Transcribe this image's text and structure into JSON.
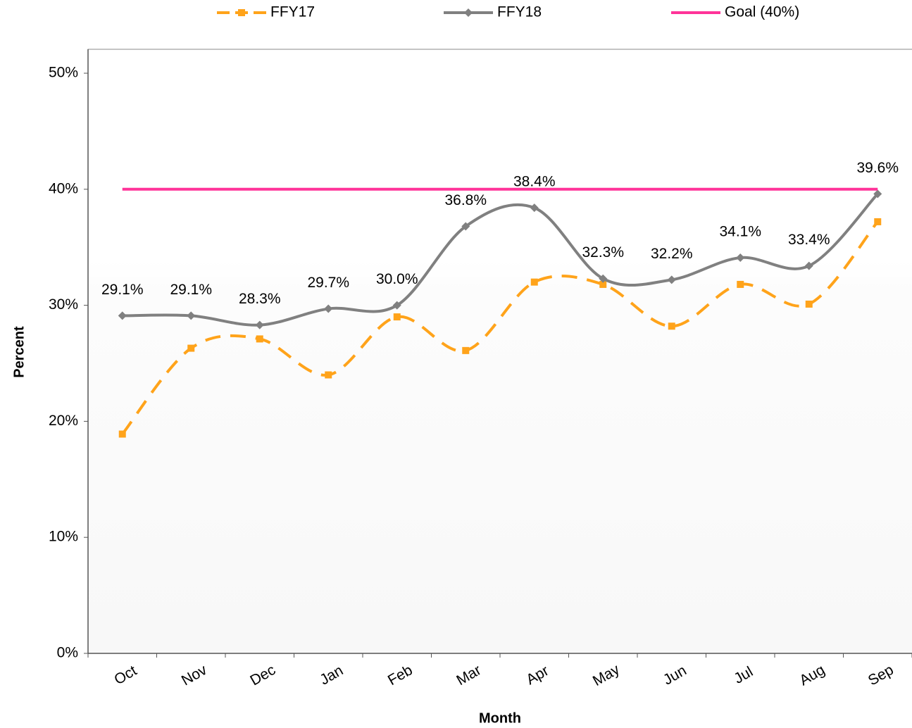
{
  "chart_data": {
    "type": "line",
    "xlabel": "Month",
    "ylabel": "Percent",
    "categories": [
      "Oct",
      "Nov",
      "Dec",
      "Jan",
      "Feb",
      "Mar",
      "Apr",
      "May",
      "Jun",
      "Jul",
      "Aug",
      "Sep"
    ],
    "series": [
      {
        "name": "FFY17",
        "color": "#ffa31a",
        "dashed": true,
        "marker": "square",
        "values": [
          18.9,
          26.3,
          27.1,
          24.0,
          29.0,
          26.1,
          32.0,
          31.8,
          28.2,
          31.8,
          30.1,
          37.2
        ]
      },
      {
        "name": "FFY18",
        "color": "#808080",
        "marker": "diamond",
        "values": [
          29.1,
          29.1,
          28.3,
          29.7,
          30.0,
          36.8,
          38.4,
          32.3,
          32.2,
          34.1,
          33.4,
          39.6
        ],
        "value_labels": [
          "29.1%",
          "29.1%",
          "28.3%",
          "29.7%",
          "30.0%",
          "36.8%",
          "38.4%",
          "32.3%",
          "32.2%",
          "34.1%",
          "33.4%",
          "39.6%"
        ]
      },
      {
        "name": "Goal (40%)",
        "color": "#ff3399",
        "values": [
          40,
          40,
          40,
          40,
          40,
          40,
          40,
          40,
          40,
          40,
          40,
          40
        ]
      }
    ],
    "ylim": [
      0,
      50
    ],
    "yticks": [
      {
        "value": 0,
        "label": "0%"
      },
      {
        "value": 10,
        "label": "10%"
      },
      {
        "value": 20,
        "label": "20%"
      },
      {
        "value": 30,
        "label": "30%"
      },
      {
        "value": 40,
        "label": "40%"
      },
      {
        "value": 50,
        "label": "50%"
      }
    ],
    "legend": "top"
  }
}
